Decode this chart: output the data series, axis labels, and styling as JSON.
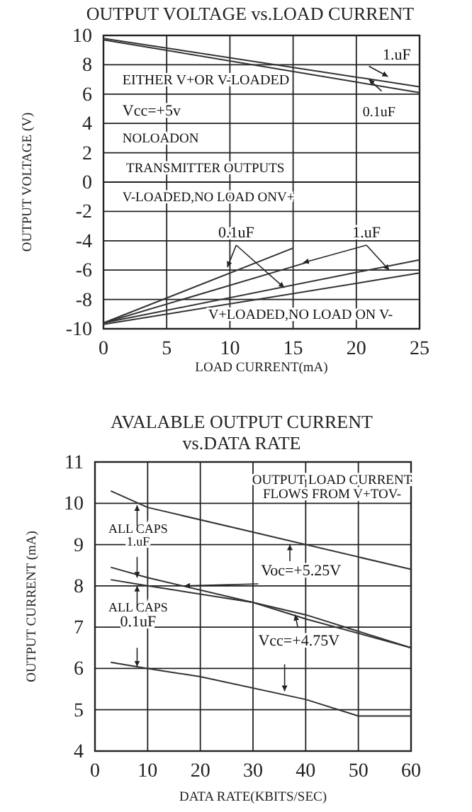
{
  "chart_data": [
    {
      "type": "line",
      "title": "OUTPUT VOLTAGE vs.LOAD CURRENT",
      "xlabel": "LOAD CURRENT(mA)",
      "ylabel": "OUTPUT VOLTAGE (V)",
      "xlim": [
        0,
        25
      ],
      "xticks": [
        0,
        5,
        10,
        15,
        20,
        25
      ],
      "ylim": [
        -10,
        10
      ],
      "yticks": [
        10,
        8,
        6,
        4,
        2,
        0,
        -2,
        -4,
        -6,
        -8,
        -10
      ],
      "grid": true,
      "marker": "none",
      "line_style": "solid",
      "series": [
        {
          "color": "#333333",
          "x": [
            0,
            25
          ],
          "values": [
            9.8,
            6.5
          ]
        },
        {
          "color": "#333333",
          "x": [
            0,
            25
          ],
          "values": [
            9.7,
            6.1
          ]
        },
        {
          "color": "#333333",
          "x": [
            0,
            15
          ],
          "values": [
            -9.6,
            -4.5
          ]
        },
        {
          "color": "#333333",
          "x": [
            0,
            16
          ],
          "values": [
            -9.6,
            -5.5
          ]
        },
        {
          "color": "#333333",
          "x": [
            0,
            25
          ],
          "values": [
            -9.6,
            -5.3
          ]
        },
        {
          "color": "#333333",
          "x": [
            0,
            25
          ],
          "values": [
            -9.7,
            -6.2
          ]
        }
      ],
      "annotations": [
        {
          "text": "1.uF",
          "x": 22.5,
          "y": 7.2
        },
        {
          "text": "0.1uF",
          "x": 21,
          "y": 7.0
        },
        "EITHER V+OR V-LOADED",
        "Vcc=+5v",
        "NOLOADON",
        "TRANSMITTER OUTPUTS",
        "V-LOADED,NO LOAD ONV+",
        {
          "text": "0.1uF",
          "x": 9.8,
          "y": -5.8
        },
        {
          "text": "1.uF",
          "x": 22.6,
          "y": -6.0
        },
        "V+LOADED,NO LOAD ON V-"
      ]
    },
    {
      "type": "line",
      "title": "AVALABLE OUTPUT CURRENT",
      "subtitle": "vs.DATA RATE",
      "xlabel": "DATA RATE(KBITS/SEC)",
      "ylabel": "OUTPUT CURRENT (mA)",
      "xlim": [
        0,
        60
      ],
      "xticks": [
        0,
        10,
        20,
        30,
        40,
        50,
        60
      ],
      "ylim": [
        4,
        11
      ],
      "yticks": [
        11,
        10,
        9,
        8,
        7,
        6,
        5,
        4
      ],
      "grid": true,
      "marker": "none",
      "line_style": "solid",
      "series": [
        {
          "color": "#333333",
          "x": [
            3,
            10,
            30,
            60
          ],
          "values": [
            10.3,
            9.9,
            9.3,
            8.4
          ]
        },
        {
          "color": "#333333",
          "x": [
            3,
            10,
            30,
            40,
            60
          ],
          "values": [
            8.45,
            8.2,
            7.6,
            7.3,
            6.5
          ]
        },
        {
          "color": "#333333",
          "x": [
            3,
            10,
            30,
            40,
            60
          ],
          "values": [
            8.15,
            8.0,
            7.6,
            7.2,
            6.5
          ]
        },
        {
          "color": "#333333",
          "x": [
            3,
            10,
            20,
            40,
            50,
            60
          ],
          "values": [
            6.15,
            6.0,
            5.8,
            5.25,
            4.85,
            4.85
          ]
        }
      ],
      "annotations": [
        "OUTPUT LOAD CURRENT",
        "FLOWS FROM V+TOV-",
        "ALL CAPS",
        "1.uF",
        {
          "text": "Voc=+5.25V",
          "x": 17,
          "y": 8.0
        },
        "ALL CAPS",
        "0.1uF",
        {
          "text": "Vcc=+4.75V",
          "x": 38,
          "y": 7.3
        }
      ]
    }
  ]
}
